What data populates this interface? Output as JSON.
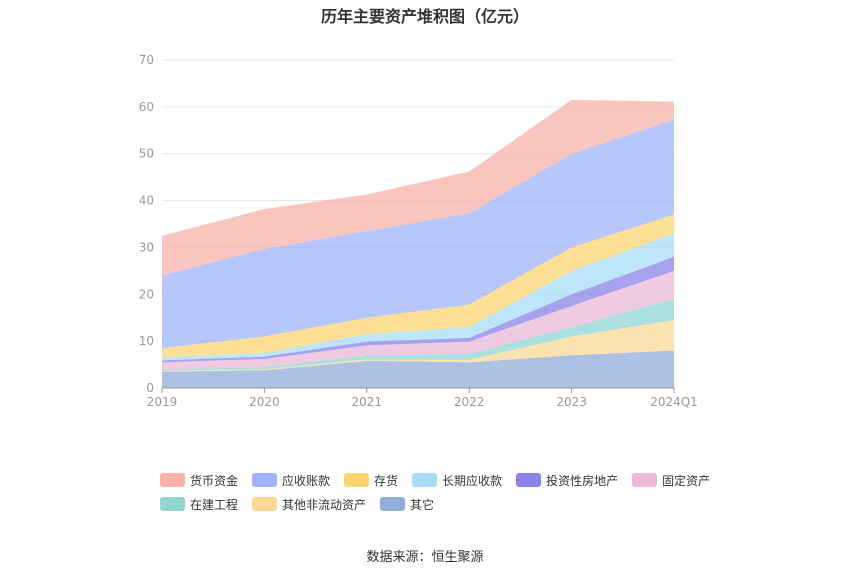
{
  "chart_data": {
    "type": "area",
    "stacked": true,
    "title": "历年主要资产堆积图（亿元）",
    "categories": [
      "2019",
      "2020",
      "2021",
      "2022",
      "2023",
      "2024Q1"
    ],
    "ylim": [
      0,
      70
    ],
    "yticks": [
      0,
      10,
      20,
      30,
      40,
      50,
      60,
      70
    ],
    "grid": true,
    "legend_position": "bottom",
    "series": [
      {
        "name": "其它",
        "color": "#91acd8",
        "values": [
          3.5,
          3.8,
          5.8,
          5.5,
          7.0,
          8.0
        ]
      },
      {
        "name": "其他非流动资产",
        "color": "#fbd896",
        "values": [
          0.2,
          0.2,
          0.3,
          0.5,
          4.0,
          6.5
        ]
      },
      {
        "name": "在建工程",
        "color": "#8fd6d3",
        "values": [
          0.2,
          0.5,
          0.8,
          1.3,
          2.0,
          4.5
        ]
      },
      {
        "name": "固定资产",
        "color": "#ebb8d8",
        "values": [
          1.6,
          1.7,
          2.2,
          2.6,
          4.5,
          6.0
        ]
      },
      {
        "name": "投资性房地产",
        "color": "#8a83e6",
        "values": [
          0.4,
          0.5,
          0.8,
          0.8,
          2.5,
          3.0
        ]
      },
      {
        "name": "长期应收款",
        "color": "#a8dcf7",
        "values": [
          0.6,
          0.8,
          1.6,
          2.3,
          5.0,
          5.0
        ]
      },
      {
        "name": "存货",
        "color": "#fcd571",
        "values": [
          2.0,
          3.5,
          3.5,
          4.8,
          5.0,
          4.0
        ]
      },
      {
        "name": "应收账款",
        "color": "#9fb4fb",
        "values": [
          15.5,
          18.7,
          18.5,
          19.5,
          20.0,
          20.3
        ]
      },
      {
        "name": "货币资金",
        "color": "#f9b1aa",
        "values": [
          8.5,
          8.5,
          7.8,
          8.9,
          11.5,
          3.8
        ]
      }
    ],
    "legend_order": [
      "货币资金",
      "应收账款",
      "存货",
      "长期应收款",
      "投资性房地产",
      "固定资产",
      "在建工程",
      "其他非流动资产",
      "其它"
    ]
  },
  "source_text": "数据来源：恒生聚源"
}
